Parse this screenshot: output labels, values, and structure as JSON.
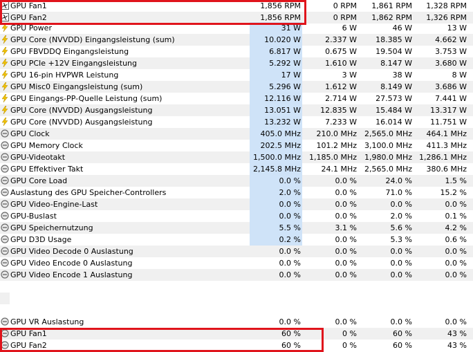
{
  "colors": {
    "alt_row": "#f0f0f0",
    "current_highlight": "#cfe3f8",
    "box_outline": "#e0141c",
    "bolt": "#f2c200",
    "clock_icon": "#6a6a6a"
  },
  "rows": [
    {
      "label": "GPU Fan1",
      "icon": "fan-icon",
      "cur": "1,856 RPM",
      "min": "0 RPM",
      "max": "1,861 RPM",
      "avg": "1,328 RPM"
    },
    {
      "label": "GPU Fan2",
      "icon": "fan-icon",
      "cur": "1,856 RPM",
      "min": "0 RPM",
      "max": "1,862 RPM",
      "avg": "1,326 RPM"
    },
    {
      "label": "GPU Power",
      "icon": "lightning-icon",
      "cur": "31 W",
      "min": "6 W",
      "max": "46 W",
      "avg": "13 W"
    },
    {
      "label": "GPU Core (NVVDD) Eingangsleistung (sum)",
      "icon": "lightning-icon",
      "cur": "10.020 W",
      "min": "2.337 W",
      "max": "18.385 W",
      "avg": "4.662 W"
    },
    {
      "label": "GPU FBVDDQ Eingangsleistung",
      "icon": "lightning-icon",
      "cur": "6.817 W",
      "min": "0.675 W",
      "max": "19.504 W",
      "avg": "3.753 W"
    },
    {
      "label": "GPU PCIe +12V Eingangsleistung",
      "icon": "lightning-icon",
      "cur": "5.292 W",
      "min": "1.610 W",
      "max": "8.147 W",
      "avg": "3.680 W"
    },
    {
      "label": "GPU 16-pin HVPWR Leistung",
      "icon": "lightning-icon",
      "cur": "17 W",
      "min": "3 W",
      "max": "38 W",
      "avg": "8 W"
    },
    {
      "label": "GPU Misc0 Eingangsleistung (sum)",
      "icon": "lightning-icon",
      "cur": "5.296 W",
      "min": "1.612 W",
      "max": "8.149 W",
      "avg": "3.686 W"
    },
    {
      "label": "GPU Eingangs-PP-Quelle Leistung (sum)",
      "icon": "lightning-icon",
      "cur": "12.116 W",
      "min": "2.714 W",
      "max": "27.573 W",
      "avg": "7.441 W"
    },
    {
      "label": "GPU Core (NVVDD) Ausgangsleistung",
      "icon": "lightning-icon",
      "cur": "13.051 W",
      "min": "12.835 W",
      "max": "15.484 W",
      "avg": "13.317 W"
    },
    {
      "label": "GPU Core (NVVDD) Ausgangsleistung",
      "icon": "lightning-icon",
      "cur": "13.232 W",
      "min": "7.233 W",
      "max": "16.014 W",
      "avg": "11.751 W"
    },
    {
      "label": "GPU Clock",
      "icon": "clock-icon",
      "cur": "405.0 MHz",
      "min": "210.0 MHz",
      "max": "2,565.0 MHz",
      "avg": "464.1 MHz"
    },
    {
      "label": "GPU Memory Clock",
      "icon": "clock-icon",
      "cur": "202.5 MHz",
      "min": "101.2 MHz",
      "max": "3,100.0 MHz",
      "avg": "411.3 MHz"
    },
    {
      "label": "GPU-Videotakt",
      "icon": "clock-icon",
      "cur": "1,500.0 MHz",
      "min": "1,185.0 MHz",
      "max": "1,980.0 MHz",
      "avg": "1,286.1 MHz"
    },
    {
      "label": "GPU Effektiver Takt",
      "icon": "clock-icon",
      "cur": "2,145.8 MHz",
      "min": "24.1 MHz",
      "max": "2,565.0 MHz",
      "avg": "380.6 MHz"
    },
    {
      "label": "GPU Core Load",
      "icon": "clock-icon",
      "cur": "0.0 %",
      "min": "0.0 %",
      "max": "24.0 %",
      "avg": "1.5 %"
    },
    {
      "label": "Auslastung des GPU Speicher-Controllers",
      "icon": "clock-icon",
      "cur": "2.0 %",
      "min": "0.0 %",
      "max": "71.0 %",
      "avg": "15.2 %"
    },
    {
      "label": "GPU Video-Engine-Last",
      "icon": "clock-icon",
      "cur": "0.0 %",
      "min": "0.0 %",
      "max": "0.0 %",
      "avg": "0.0 %"
    },
    {
      "label": "GPU-Buslast",
      "icon": "clock-icon",
      "cur": "0.0 %",
      "min": "0.0 %",
      "max": "2.0 %",
      "avg": "0.1 %"
    },
    {
      "label": "GPU Speichernutzung",
      "icon": "clock-icon",
      "cur": "5.5 %",
      "min": "3.1 %",
      "max": "5.6 %",
      "avg": "4.2 %"
    },
    {
      "label": "GPU D3D Usage",
      "icon": "clock-icon",
      "cur": "0.2 %",
      "min": "0.0 %",
      "max": "5.3 %",
      "avg": "0.6 %"
    },
    {
      "label": "GPU Video Decode 0 Auslastung",
      "icon": "clock-icon",
      "cur": "0.0 %",
      "min": "0.0 %",
      "max": "0.0 %",
      "avg": "0.0 %"
    },
    {
      "label": "GPU Video Encode 0 Auslastung",
      "icon": "clock-icon",
      "cur": "0.0 %",
      "min": "0.0 %",
      "max": "0.0 %",
      "avg": "0.0 %"
    },
    {
      "label": "GPU Video Encode 1 Auslastung",
      "icon": "clock-icon",
      "cur": "0.0 %",
      "min": "0.0 %",
      "max": "0.0 %",
      "avg": "0.0 %"
    },
    {
      "label": "GPU VR Auslastung",
      "icon": "clock-icon",
      "cur": "0.0 %",
      "min": "0.0 %",
      "max": "0.0 %",
      "avg": "0.0 %"
    },
    {
      "label": "GPU Fan1",
      "icon": "clock-icon",
      "cur": "60 %",
      "min": "0 %",
      "max": "60 %",
      "avg": "43 %"
    },
    {
      "label": "GPU Fan2",
      "icon": "clock-icon",
      "cur": "60 %",
      "min": "0 %",
      "max": "60 %",
      "avg": "43 %"
    }
  ]
}
